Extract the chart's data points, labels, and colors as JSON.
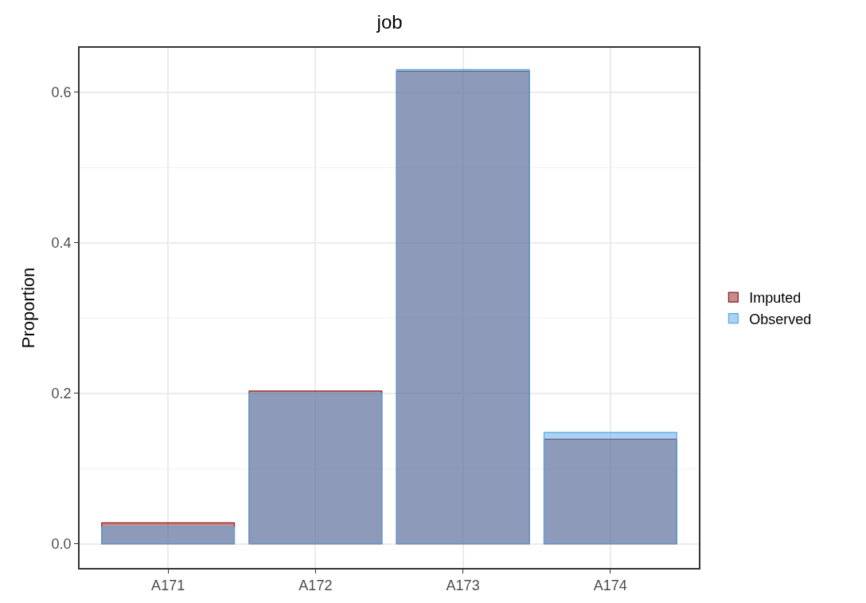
{
  "chart_data": {
    "type": "bar",
    "title": "job",
    "ylabel": "Proportion",
    "categories": [
      "A171",
      "A172",
      "A173",
      "A174"
    ],
    "series": [
      {
        "name": "Imputed",
        "color": "#8b1a1a",
        "values": [
          0.028,
          0.203,
          0.628,
          0.139
        ]
      },
      {
        "name": "Observed",
        "color": "#56a8e8",
        "values": [
          0.022,
          0.2,
          0.63,
          0.148
        ]
      }
    ],
    "ylim": [
      -0.032,
      0.659
    ],
    "yticks": [
      {
        "value": 0,
        "label": "0.0"
      },
      0.2,
      0.4,
      0.6
    ],
    "grid": true,
    "legend": "right"
  }
}
